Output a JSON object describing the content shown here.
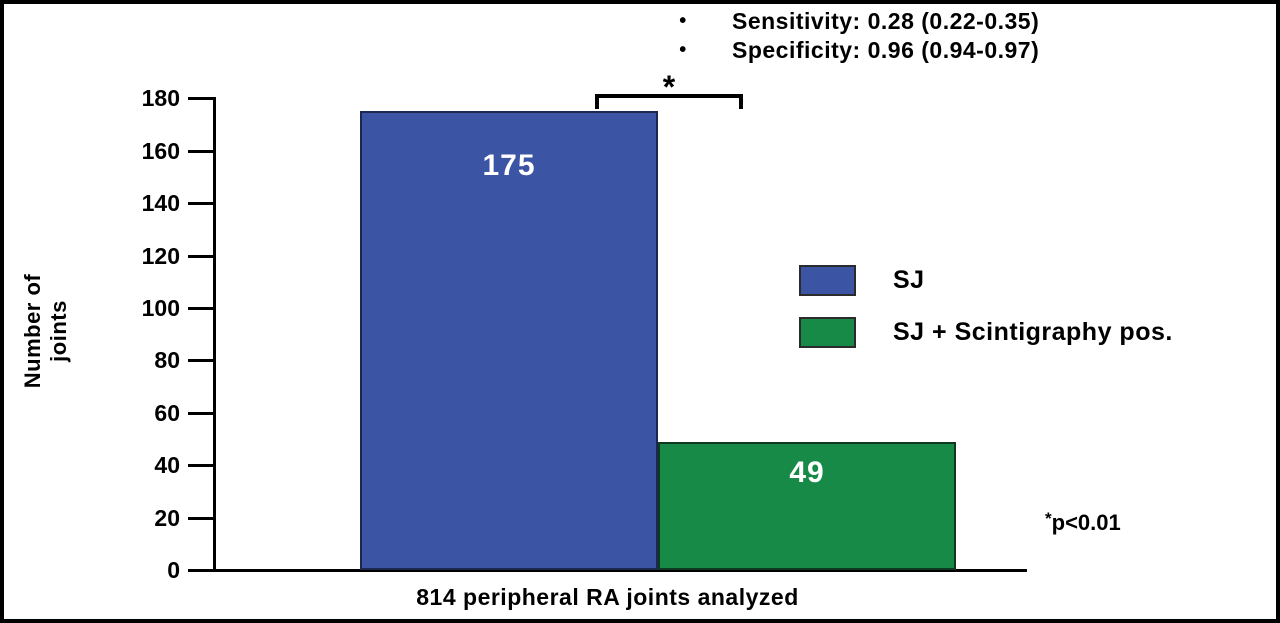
{
  "header": {
    "bullet_glyph": "•",
    "items": [
      "Sensitivity: 0.28 (0.22-0.35)",
      "Specificity: 0.96 (0.94-0.97)"
    ]
  },
  "chart_data": {
    "type": "bar",
    "categories": [
      "SJ",
      "SJ + Scintigraphy pos."
    ],
    "values": [
      175,
      49
    ],
    "bar_labels": [
      "175",
      "49"
    ],
    "bar_colors": [
      "#3B54A4",
      "#178A47"
    ],
    "bar_border_colors": [
      "#1C2850",
      "#0F3A22"
    ],
    "ylabel": "Number of joints",
    "xlabel": "814 peripheral RA joints analyzed",
    "ylim": [
      0,
      180
    ],
    "yticks": [
      0,
      20,
      40,
      60,
      80,
      100,
      120,
      140,
      160,
      180
    ],
    "grid": false,
    "legend_position": "right",
    "legend": [
      {
        "label": "SJ",
        "color": "#3B54A4"
      },
      {
        "label": "SJ + Scintigraphy pos.",
        "color": "#178A47"
      }
    ],
    "annotations": {
      "significance_marker": "*",
      "note_star": "*",
      "note_text": "p<0.01"
    },
    "axis_color": "#000000",
    "text_color": "#000000"
  }
}
